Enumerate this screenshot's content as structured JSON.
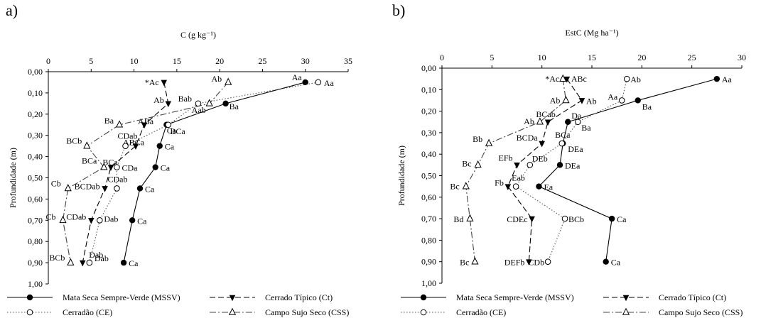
{
  "chart_data": [
    {
      "type": "line",
      "panel_label": "a)",
      "xlabel": "C (g kg⁻¹)",
      "ylabel": "Profundidade (m)",
      "xlim": [
        0,
        35
      ],
      "ylim": [
        0,
        1.0
      ],
      "x_ticks": [
        "0",
        "5",
        "10",
        "15",
        "20",
        "25",
        "30",
        "35"
      ],
      "y_ticks": [
        "0,00",
        "0,10",
        "0,20",
        "0,30",
        "0,40",
        "0,50",
        "0,60",
        "0,70",
        "0,80",
        "0,90",
        "1,00"
      ],
      "x_axis_position": "top",
      "y_axis_inverted": true,
      "grid": false,
      "series": [
        {
          "name": "Mata Seca Sempre-Verde (MSSV)",
          "style": "solid",
          "marker": "filled-circle",
          "points": [
            {
              "x": 30.0,
              "y": 0.05,
              "label": "Aa"
            },
            {
              "x": 20.7,
              "y": 0.15,
              "label": "Ba"
            },
            {
              "x": 13.8,
              "y": 0.25,
              "label": "BCa"
            },
            {
              "x": 13.0,
              "y": 0.35,
              "label": "Ca"
            },
            {
              "x": 12.5,
              "y": 0.45,
              "label": "Ca"
            },
            {
              "x": 10.7,
              "y": 0.55,
              "label": "Ca"
            },
            {
              "x": 9.8,
              "y": 0.7,
              "label": "Ca"
            },
            {
              "x": 8.8,
              "y": 0.9,
              "label": "Ca"
            }
          ]
        },
        {
          "name": "Cerrado Típico (Ct)",
          "style": "dashed",
          "marker": "filled-triangle-down",
          "points": [
            {
              "x": 13.5,
              "y": 0.05,
              "label": "*Ac"
            },
            {
              "x": 14.0,
              "y": 0.15,
              "label": "Ab"
            },
            {
              "x": 11.2,
              "y": 0.25,
              "label": "ABa"
            },
            {
              "x": 10.2,
              "y": 0.35,
              "label": "ABCa"
            },
            {
              "x": 7.3,
              "y": 0.45,
              "label": "BCa"
            },
            {
              "x": 6.6,
              "y": 0.55,
              "label": "BCDab"
            },
            {
              "x": 5.0,
              "y": 0.7,
              "label": "CDab"
            },
            {
              "x": 4.0,
              "y": 0.9,
              "label": "Dab"
            }
          ]
        },
        {
          "name": "Cerradão (CE)",
          "style": "dotted",
          "marker": "open-circle",
          "points": [
            {
              "x": 31.5,
              "y": 0.05,
              "label": "Aa"
            },
            {
              "x": 17.5,
              "y": 0.15,
              "label": "Bab"
            },
            {
              "x": 14.0,
              "y": 0.25,
              "label": "Ca"
            },
            {
              "x": 9.0,
              "y": 0.35,
              "label": "CDab"
            },
            {
              "x": 8.0,
              "y": 0.45,
              "label": "CDa"
            },
            {
              "x": 8.0,
              "y": 0.55,
              "label": "CDab"
            },
            {
              "x": 6.0,
              "y": 0.7,
              "label": "Dab"
            },
            {
              "x": 4.8,
              "y": 0.9,
              "label": "Dab"
            }
          ]
        },
        {
          "name": "Campo Sujo Seco (CSS)",
          "style": "dash-dot",
          "marker": "open-triangle-up",
          "points": [
            {
              "x": 21.0,
              "y": 0.05,
              "label": "Ab"
            },
            {
              "x": 18.8,
              "y": 0.15,
              "label": "Aab"
            },
            {
              "x": 8.3,
              "y": 0.25,
              "label": "Ba"
            },
            {
              "x": 4.5,
              "y": 0.35,
              "label": "BCb"
            },
            {
              "x": 6.5,
              "y": 0.45,
              "label": "BCa"
            },
            {
              "x": 2.3,
              "y": 0.55,
              "label": "Cb"
            },
            {
              "x": 1.7,
              "y": 0.7,
              "label": "Cb"
            },
            {
              "x": 2.6,
              "y": 0.9,
              "label": "BCb"
            }
          ]
        }
      ]
    },
    {
      "type": "line",
      "panel_label": "b)",
      "xlabel": "EstC (Mg ha⁻¹)",
      "ylabel": "Profundidade (m)",
      "xlim": [
        0,
        30
      ],
      "ylim": [
        0,
        1.0
      ],
      "x_ticks": [
        "0",
        "5",
        "10",
        "15",
        "20",
        "25",
        "30"
      ],
      "y_ticks": [
        "0,00",
        "0,10",
        "0,20",
        "0,30",
        "0,40",
        "0,50",
        "0,60",
        "0,70",
        "0,80",
        "0,90",
        "1,00"
      ],
      "x_axis_position": "top",
      "y_axis_inverted": true,
      "grid": false,
      "series": [
        {
          "name": "Mata Seca Sempre-Verde (MSSV)",
          "style": "solid",
          "marker": "filled-circle",
          "points": [
            {
              "x": 27.5,
              "y": 0.05,
              "label": "Aa"
            },
            {
              "x": 19.6,
              "y": 0.15,
              "label": "Ba"
            },
            {
              "x": 12.6,
              "y": 0.25,
              "label": "Da"
            },
            {
              "x": 12.1,
              "y": 0.35,
              "label": "DEa"
            },
            {
              "x": 11.8,
              "y": 0.45,
              "label": "DEa"
            },
            {
              "x": 9.7,
              "y": 0.55,
              "label": "Ea"
            },
            {
              "x": 17.0,
              "y": 0.7,
              "label": "Ca"
            },
            {
              "x": 16.4,
              "y": 0.9,
              "label": "Ca"
            }
          ]
        },
        {
          "name": "Cerrado Típico (Ct)",
          "style": "dashed",
          "marker": "filled-triangle-down",
          "points": [
            {
              "x": 12.5,
              "y": 0.05,
              "label": "ABc"
            },
            {
              "x": 14.0,
              "y": 0.15,
              "label": "Ab"
            },
            {
              "x": 10.6,
              "y": 0.25,
              "label": "BCab"
            },
            {
              "x": 10.0,
              "y": 0.35,
              "label": "BCDa"
            },
            {
              "x": 7.5,
              "y": 0.45,
              "label": "EFb"
            },
            {
              "x": 6.6,
              "y": 0.55,
              "label": "Fb"
            },
            {
              "x": 9.0,
              "y": 0.7,
              "label": "CDEc"
            },
            {
              "x": 8.7,
              "y": 0.9,
              "label": "DEFb"
            }
          ]
        },
        {
          "name": "Cerradão (CE)",
          "style": "dotted",
          "marker": "open-circle",
          "points": [
            {
              "x": 18.5,
              "y": 0.05,
              "label": "Ab"
            },
            {
              "x": 18.0,
              "y": 0.15,
              "label": "Aa"
            },
            {
              "x": 13.6,
              "y": 0.25,
              "label": "Ba"
            },
            {
              "x": 12.0,
              "y": 0.35,
              "label": "BCa"
            },
            {
              "x": 8.8,
              "y": 0.45,
              "label": "DEb"
            },
            {
              "x": 7.4,
              "y": 0.55,
              "label": "Eab"
            },
            {
              "x": 12.3,
              "y": 0.7,
              "label": "BCb"
            },
            {
              "x": 10.6,
              "y": 0.9,
              "label": "CDb"
            }
          ]
        },
        {
          "name": "Campo Sujo Seco (CSS)",
          "style": "dash-dot",
          "marker": "open-triangle-up",
          "points": [
            {
              "x": 12.1,
              "y": 0.05,
              "label": "*Ac"
            },
            {
              "x": 12.4,
              "y": 0.15,
              "label": "Ab"
            },
            {
              "x": 9.8,
              "y": 0.25,
              "label": "Ab"
            },
            {
              "x": 4.7,
              "y": 0.35,
              "label": "Bb"
            },
            {
              "x": 3.6,
              "y": 0.45,
              "label": "Bc"
            },
            {
              "x": 2.4,
              "y": 0.55,
              "label": "Bc"
            },
            {
              "x": 2.8,
              "y": 0.7,
              "label": "Bd"
            },
            {
              "x": 3.3,
              "y": 0.9,
              "label": "Bc"
            }
          ]
        }
      ]
    }
  ]
}
